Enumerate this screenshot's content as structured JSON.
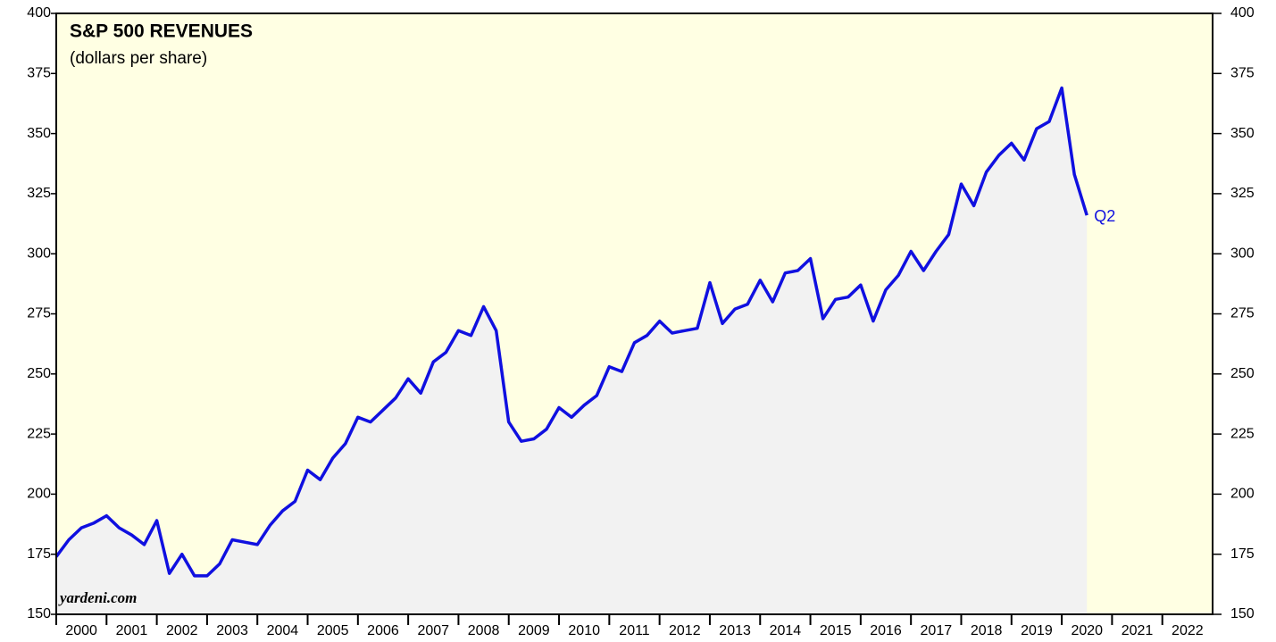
{
  "chart_data": {
    "type": "line",
    "title": "S&P 500 REVENUES",
    "subtitle": "(dollars per share)",
    "watermark": "yardeni.com",
    "annotation": "Q2",
    "color": "#1010e0",
    "area_color": "#f2f2f2",
    "background": "#ffffe3",
    "x": [
      2000,
      2000.25,
      2000.5,
      2000.75,
      2001,
      2001.25,
      2001.5,
      2001.75,
      2002,
      2002.25,
      2002.5,
      2002.75,
      2003,
      2003.25,
      2003.5,
      2003.75,
      2004,
      2004.25,
      2004.5,
      2004.75,
      2005,
      2005.25,
      2005.5,
      2005.75,
      2006,
      2006.25,
      2006.5,
      2006.75,
      2007,
      2007.25,
      2007.5,
      2007.75,
      2008,
      2008.25,
      2008.5,
      2008.75,
      2009,
      2009.25,
      2009.5,
      2009.75,
      2010,
      2010.25,
      2010.5,
      2010.75,
      2011,
      2011.25,
      2011.5,
      2011.75,
      2012,
      2012.25,
      2012.5,
      2012.75,
      2013,
      2013.25,
      2013.5,
      2013.75,
      2014,
      2014.25,
      2014.5,
      2014.75,
      2015,
      2015.25,
      2015.5,
      2015.75,
      2016,
      2016.25,
      2016.5,
      2016.75,
      2017,
      2017.25,
      2017.5,
      2017.75,
      2018,
      2018.25,
      2018.5,
      2018.75,
      2019,
      2019.25,
      2019.5,
      2019.75,
      2020,
      2020.25,
      2020.5
    ],
    "values": [
      174,
      181,
      186,
      188,
      191,
      186,
      183,
      179,
      189,
      167,
      175,
      166,
      166,
      171,
      181,
      180,
      179,
      187,
      193,
      197,
      210,
      206,
      215,
      221,
      232,
      230,
      235,
      240,
      248,
      242,
      255,
      259,
      268,
      266,
      278,
      268,
      230,
      222,
      223,
      227,
      236,
      232,
      237,
      241,
      253,
      251,
      263,
      266,
      272,
      267,
      268,
      269,
      288,
      271,
      277,
      279,
      289,
      280,
      292,
      293,
      298,
      273,
      281,
      282,
      287,
      272,
      285,
      291,
      301,
      293,
      301,
      308,
      329,
      320,
      334,
      341,
      346,
      339,
      352,
      355,
      369,
      333,
      316
    ],
    "xlim": [
      2000,
      2023
    ],
    "xticks": [
      {
        "value": 2000.5,
        "label": "2000"
      },
      {
        "value": 2001.5,
        "label": "2001"
      },
      {
        "value": 2002.5,
        "label": "2002"
      },
      {
        "value": 2003.5,
        "label": "2003"
      },
      {
        "value": 2004.5,
        "label": "2004"
      },
      {
        "value": 2005.5,
        "label": "2005"
      },
      {
        "value": 2006.5,
        "label": "2006"
      },
      {
        "value": 2007.5,
        "label": "2007"
      },
      {
        "value": 2008.5,
        "label": "2008"
      },
      {
        "value": 2009.5,
        "label": "2009"
      },
      {
        "value": 2010.5,
        "label": "2010"
      },
      {
        "value": 2011.5,
        "label": "2011"
      },
      {
        "value": 2012.5,
        "label": "2012"
      },
      {
        "value": 2013.5,
        "label": "2013"
      },
      {
        "value": 2014.5,
        "label": "2014"
      },
      {
        "value": 2015.5,
        "label": "2015"
      },
      {
        "value": 2016.5,
        "label": "2016"
      },
      {
        "value": 2017.5,
        "label": "2017"
      },
      {
        "value": 2018.5,
        "label": "2018"
      },
      {
        "value": 2019.5,
        "label": "2019"
      },
      {
        "value": 2020.5,
        "label": "2020"
      },
      {
        "value": 2021.5,
        "label": "2021"
      },
      {
        "value": 2022.5,
        "label": "2022"
      }
    ],
    "ylim": [
      150,
      400
    ],
    "yticks": [
      150,
      175,
      200,
      225,
      250,
      275,
      300,
      325,
      350,
      375,
      400
    ],
    "y2lim": [
      150,
      400
    ],
    "y2ticks": [
      150,
      175,
      200,
      225,
      250,
      275,
      300,
      325,
      350,
      375,
      400
    ]
  }
}
